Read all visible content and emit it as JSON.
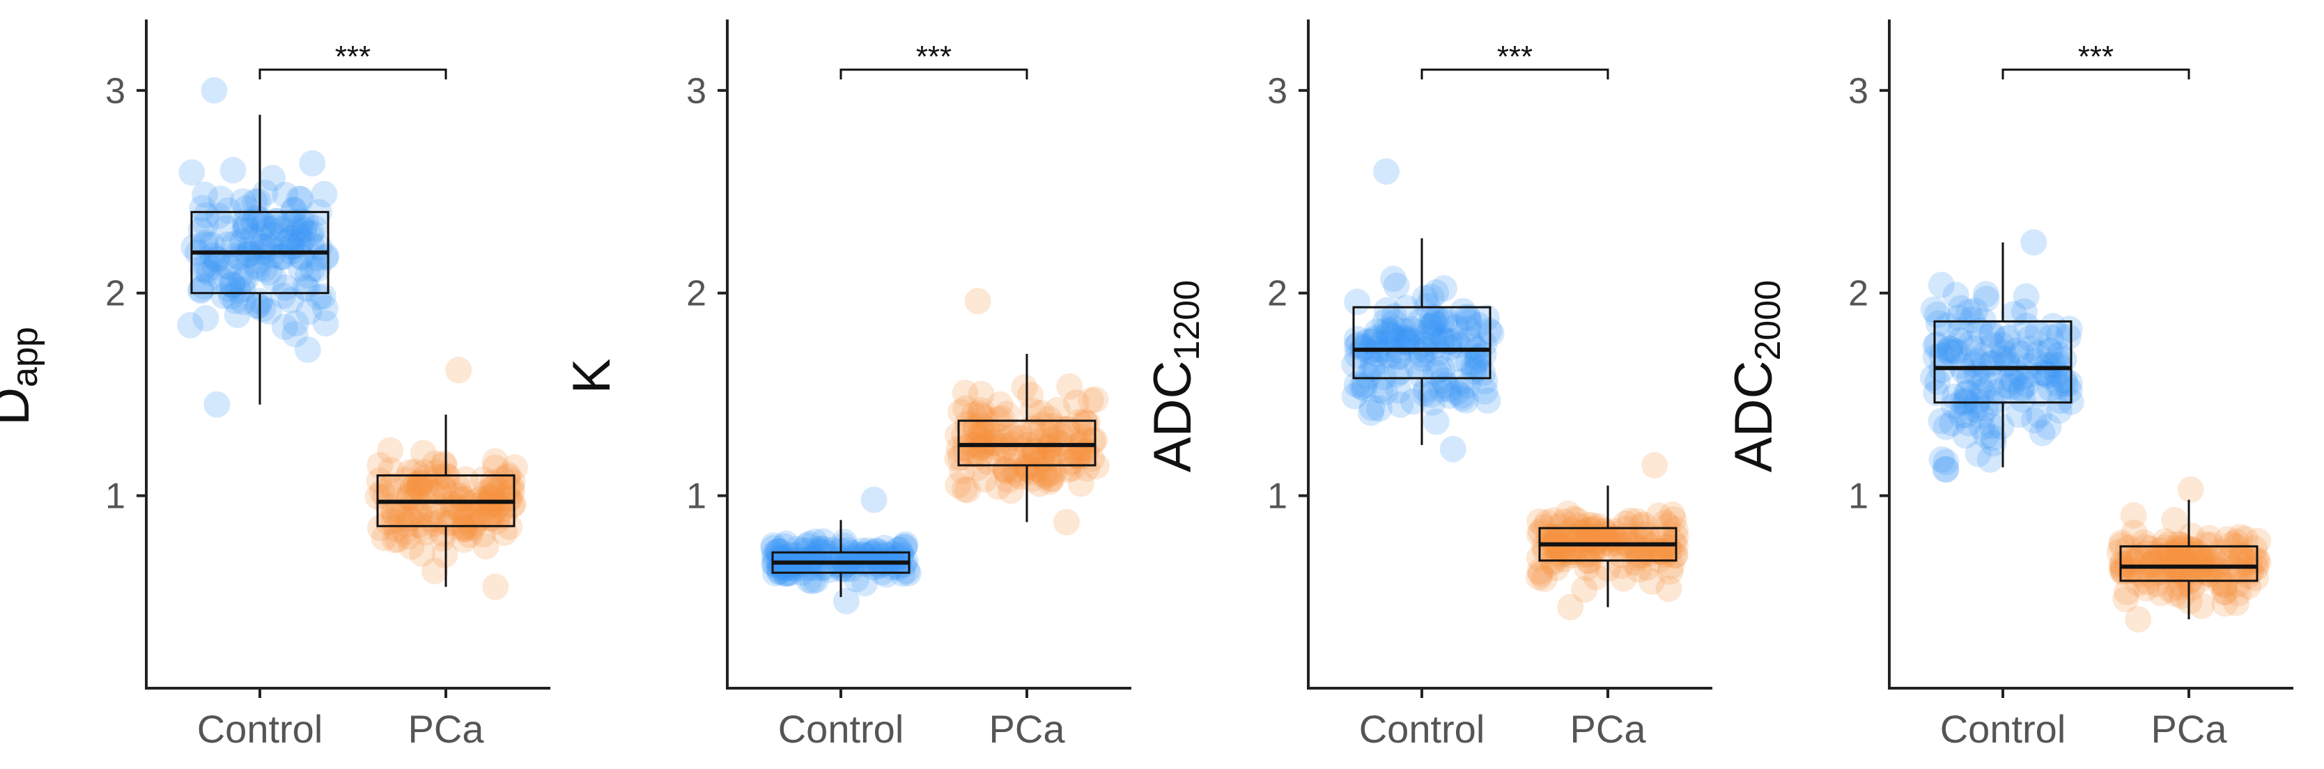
{
  "figure": {
    "colors": {
      "control": "#3d95f5",
      "pca": "#f7913f",
      "axis": "#222222",
      "text": "#555555"
    },
    "panels": [
      {
        "ylabel_main": "D",
        "ylabel_sub": "app",
        "significance": "***",
        "yticks": [
          "1",
          "2",
          "3"
        ],
        "categories": [
          "Control",
          "PCa"
        ]
      },
      {
        "ylabel_main": "K",
        "ylabel_sub": "",
        "significance": "***",
        "yticks": [
          "1",
          "2",
          "3"
        ],
        "categories": [
          "Control",
          "PCa"
        ]
      },
      {
        "ylabel_main": "ADC",
        "ylabel_sub": "1200",
        "significance": "***",
        "yticks": [
          "1",
          "2",
          "3"
        ],
        "categories": [
          "Control",
          "PCa"
        ]
      },
      {
        "ylabel_main": "ADC",
        "ylabel_sub": "2000",
        "significance": "***",
        "yticks": [
          "1",
          "2",
          "3"
        ],
        "categories": [
          "Control",
          "PCa"
        ]
      }
    ]
  },
  "chart_data": [
    {
      "type": "box",
      "ylabel": "Dapp",
      "categories": [
        "Control",
        "PCa"
      ],
      "ylim": [
        0.05,
        3.35
      ],
      "yticks": [
        1,
        2,
        3
      ],
      "grid": false,
      "series": [
        {
          "name": "Control",
          "whisker_low": 1.45,
          "q1": 2.0,
          "median": 2.2,
          "q3": 2.4,
          "whisker_high": 2.88,
          "points_min": 1.45,
          "points_max": 3.0
        },
        {
          "name": "PCa",
          "whisker_low": 0.55,
          "q1": 0.85,
          "median": 0.97,
          "q3": 1.1,
          "whisker_high": 1.4,
          "points_min": 0.55,
          "points_max": 1.62
        }
      ],
      "significance": "***"
    },
    {
      "type": "box",
      "ylabel": "K",
      "categories": [
        "Control",
        "PCa"
      ],
      "ylim": [
        0.05,
        3.35
      ],
      "yticks": [
        1,
        2,
        3
      ],
      "grid": false,
      "series": [
        {
          "name": "Control",
          "whisker_low": 0.5,
          "q1": 0.62,
          "median": 0.67,
          "q3": 0.72,
          "whisker_high": 0.88,
          "points_min": 0.48,
          "points_max": 0.98
        },
        {
          "name": "PCa",
          "whisker_low": 0.87,
          "q1": 1.15,
          "median": 1.25,
          "q3": 1.37,
          "whisker_high": 1.7,
          "points_min": 0.87,
          "points_max": 1.96
        }
      ],
      "significance": "***"
    },
    {
      "type": "box",
      "ylabel": "ADC1200",
      "categories": [
        "Control",
        "PCa"
      ],
      "ylim": [
        0.05,
        3.35
      ],
      "yticks": [
        1,
        2,
        3
      ],
      "grid": false,
      "series": [
        {
          "name": "Control",
          "whisker_low": 1.25,
          "q1": 1.58,
          "median": 1.72,
          "q3": 1.93,
          "whisker_high": 2.27,
          "points_min": 1.23,
          "points_max": 2.6
        },
        {
          "name": "PCa",
          "whisker_low": 0.45,
          "q1": 0.68,
          "median": 0.76,
          "q3": 0.84,
          "whisker_high": 1.05,
          "points_min": 0.45,
          "points_max": 1.15
        }
      ],
      "significance": "***"
    },
    {
      "type": "box",
      "ylabel": "ADC2000",
      "categories": [
        "Control",
        "PCa"
      ],
      "ylim": [
        0.05,
        3.35
      ],
      "yticks": [
        1,
        2,
        3
      ],
      "grid": false,
      "series": [
        {
          "name": "Control",
          "whisker_low": 1.14,
          "q1": 1.46,
          "median": 1.63,
          "q3": 1.86,
          "whisker_high": 2.25,
          "points_min": 1.13,
          "points_max": 2.25
        },
        {
          "name": "PCa",
          "whisker_low": 0.39,
          "q1": 0.58,
          "median": 0.65,
          "q3": 0.75,
          "whisker_high": 0.98,
          "points_min": 0.39,
          "points_max": 1.03
        }
      ],
      "significance": "***"
    }
  ]
}
